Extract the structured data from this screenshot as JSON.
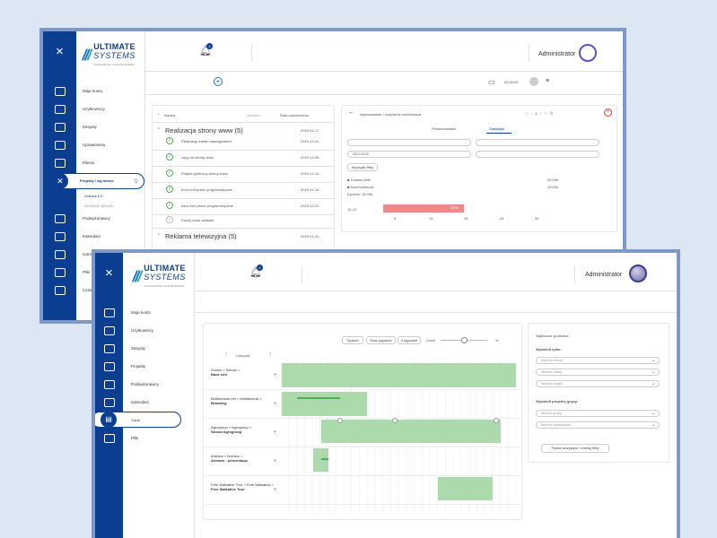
{
  "brand": {
    "line1": "ULTIMATE",
    "line2": "SYSTEMS",
    "tagline": "ACCELERATE YOUR BUSINESS"
  },
  "common": {
    "close_glyph": "×",
    "admin_label": "Administrator",
    "notif_count": "4"
  },
  "back": {
    "sidebar_items": [
      "Moje konto",
      "Użytkownicy",
      "Zespoły",
      "Uprawnienia",
      "Klienci",
      "Projekty / wg marek",
      "Podwykonawcy",
      "Kalendarz",
      "Gantt",
      "Pliki",
      "Czas pracy"
    ],
    "sub_items": [
      "Antrans EG",
      "NONAME BRAND"
    ],
    "toolbar": {
      "time": "00:00:00"
    },
    "table": {
      "col_name": "Nazwa",
      "col_status": "Aktualne",
      "col_date": "Data zakończenia",
      "group1": {
        "title": "Realizacja strony www (5)",
        "date": "2019-01-17"
      },
      "tasks": [
        {
          "name": "Realizacja zadań managerskich",
          "date": "2019-12-01"
        },
        {
          "name": "copy na stronę www",
          "date": "2019-12-05"
        },
        {
          "name": "Projekt graficzny strony www",
          "date": "2019-12-11"
        },
        {
          "name": "front end prace programistyczne",
          "date": "2019-12-18"
        },
        {
          "name": "back-end prace programistyczne",
          "date": "2019-12-24"
        }
      ],
      "add_task": "Dodaj nowe zadanie",
      "group2": {
        "title": "Reklama telewizyjna (5)",
        "date": "2019-01-31"
      }
    },
    "detail": {
      "title": "zaplanowanie i rozpisanie scenariusza",
      "tab1": "Podsumowanie",
      "tab2": "Statystyki",
      "date_value": "2012-03-02",
      "clear_filters": "Wyczyść filtry",
      "person1": "Tomasz Wilk",
      "person1_time": "00:00h",
      "person2": "Aixa Koniecow",
      "person2_time": "15:00h",
      "total": "Łącznie: 15.00h",
      "bar_label": "12-12",
      "bar_value": "15:00",
      "axis": [
        "6",
        "12",
        "18",
        "24",
        "30"
      ]
    }
  },
  "front": {
    "sidebar_items": [
      "Moje konto",
      "Użytkownicy",
      "Zespoły",
      "Projekty",
      "Podwykonawcy",
      "Kalendarz",
      "Gantt",
      "Pliki"
    ],
    "gantt": {
      "views": [
        "Tydzień",
        "Dwa tygodnie",
        "4 tygodnie"
      ],
      "zoom_label": "Zoom",
      "zoom_unit": "%",
      "month": "Listopad",
      "rows": [
        {
          "l1": "Schulz > Schulz >",
          "l2": "Back end"
        },
        {
          "l1": "Multitechnik.net > Multitechnik >",
          "l2": "Branding"
        },
        {
          "l1": "Agrogroup > Agrogroup >",
          "l2": "Strona Agrogroup"
        },
        {
          "l1": "Antrans > Antrans >",
          "l2": "Antrans - prezentacja"
        },
        {
          "l1": "Free Walkative Tour > Free Walkative >",
          "l2": "Free Walkative Tour"
        }
      ]
    },
    "filters": {
      "title": "Najbliższe spotkania",
      "only_label": "Wyświetl tylko:",
      "selects1": [
        "Wybierz klienta",
        "Wybierz markę",
        "Wybierz projekt"
      ],
      "groups_label": "Wyświetl projekty grupy:",
      "selects2": [
        "Wybierz grupę",
        "Wybierz użytkownika"
      ],
      "reset_button": "Pokaż wszystkie / resetuj filtry"
    }
  }
}
